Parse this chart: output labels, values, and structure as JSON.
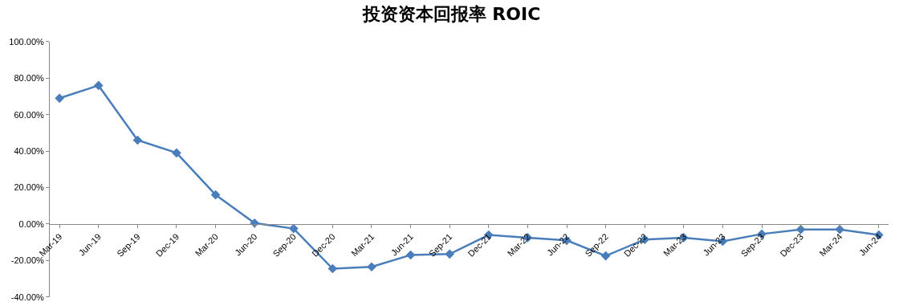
{
  "chart_data": {
    "type": "line",
    "title": "投资资本回报率 ROIC",
    "categories": [
      "Mar-19",
      "Jun-19",
      "Sep-19",
      "Dec-19",
      "Mar-20",
      "Jun-20",
      "Sep-20",
      "Dec-20",
      "Mar-21",
      "Jun-21",
      "Sep-21",
      "Dec-21",
      "Mar-22",
      "Jun-22",
      "Sep-22",
      "Dec-22",
      "Mar-23",
      "Jun-23",
      "Sep-23",
      "Dec-23",
      "Mar-24",
      "Jun-24"
    ],
    "series": [
      {
        "color": "#4a7ebb",
        "values": [
          69,
          76,
          46,
          39,
          16,
          0.5,
          -2.5,
          -24.5,
          -23.5,
          -17,
          -16.5,
          -6,
          -7.5,
          -9,
          -17.5,
          -8.5,
          -7.5,
          -9.5,
          -5.5,
          -3,
          -3,
          -6
        ]
      }
    ],
    "ylim": [
      -40,
      100
    ],
    "yticks": [
      {
        "value": -40,
        "label": "-40.00%"
      },
      {
        "value": -20,
        "label": "-20.00%"
      },
      {
        "value": 0,
        "label": "0.00%"
      },
      {
        "value": 20,
        "label": "20.00%"
      },
      {
        "value": 40,
        "label": "40.00%"
      },
      {
        "value": 60,
        "label": "60.00%"
      },
      {
        "value": 80,
        "label": "80.00%"
      },
      {
        "value": 100,
        "label": "100.00%"
      }
    ],
    "grid": false,
    "marker": "diamond",
    "line_style": "solid"
  }
}
